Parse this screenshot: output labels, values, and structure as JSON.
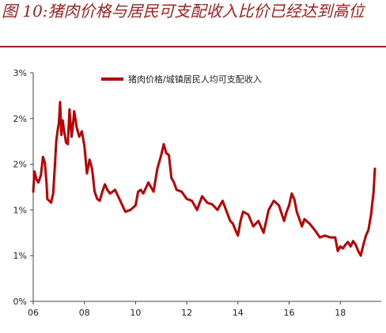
{
  "title": "图 10:猪肉价格与居民可支配收入比价已经达到高位",
  "chart_data": {
    "type": "line",
    "xlabel": "",
    "ylabel": "",
    "x_ticks": [
      "06",
      "08",
      "10",
      "12",
      "14",
      "16",
      "18"
    ],
    "y_ticks": [
      "0%",
      "1%",
      "1%",
      "2%",
      "2%",
      "3%"
    ],
    "y_tick_values": [
      0,
      0.5,
      1.0,
      1.5,
      2.0,
      2.5
    ],
    "xlim": [
      2006,
      2019.6
    ],
    "ylim": [
      0,
      2.5
    ],
    "legend": {
      "position": "top-right",
      "label": "猪肉价格/城镇居民人均可支配收入"
    },
    "series": [
      {
        "name": "猪肉价格/城镇居民人均可支配收入",
        "color": "#c00000",
        "x": [
          2006.0,
          2006.05,
          2006.12,
          2006.2,
          2006.3,
          2006.38,
          2006.45,
          2006.52,
          2006.55,
          2006.62,
          2006.7,
          2006.78,
          2006.85,
          2006.9,
          2006.95,
          2007.0,
          2007.05,
          2007.1,
          2007.15,
          2007.2,
          2007.28,
          2007.35,
          2007.42,
          2007.5,
          2007.55,
          2007.6,
          2007.7,
          2007.8,
          2007.9,
          2008.0,
          2008.1,
          2008.2,
          2008.3,
          2008.4,
          2008.5,
          2008.6,
          2008.7,
          2008.8,
          2008.9,
          2009.0,
          2009.2,
          2009.4,
          2009.6,
          2009.8,
          2010.0,
          2010.1,
          2010.2,
          2010.3,
          2010.5,
          2010.7,
          2010.85,
          2011.0,
          2011.1,
          2011.2,
          2011.3,
          2011.4,
          2011.5,
          2011.6,
          2011.8,
          2012.0,
          2012.2,
          2012.4,
          2012.6,
          2012.8,
          2013.0,
          2013.2,
          2013.4,
          2013.6,
          2013.7,
          2013.8,
          2013.9,
          2014.0,
          2014.1,
          2014.2,
          2014.4,
          2014.6,
          2014.8,
          2015.0,
          2015.2,
          2015.4,
          2015.6,
          2015.8,
          2015.9,
          2016.0,
          2016.1,
          2016.2,
          2016.3,
          2016.4,
          2016.5,
          2016.6,
          2016.8,
          2017.0,
          2017.2,
          2017.4,
          2017.6,
          2017.8,
          2017.9,
          2018.0,
          2018.1,
          2018.2,
          2018.3,
          2018.4,
          2018.5,
          2018.6,
          2018.7,
          2018.8,
          2018.9,
          2019.0,
          2019.1,
          2019.2,
          2019.3,
          2019.35
        ],
        "values": [
          1.2,
          1.42,
          1.34,
          1.3,
          1.38,
          1.58,
          1.52,
          1.3,
          1.12,
          1.1,
          1.08,
          1.18,
          1.5,
          1.75,
          1.86,
          1.95,
          2.18,
          1.82,
          1.98,
          1.88,
          1.74,
          1.72,
          2.1,
          1.8,
          1.92,
          2.08,
          1.9,
          1.8,
          1.86,
          1.7,
          1.4,
          1.55,
          1.45,
          1.2,
          1.12,
          1.1,
          1.2,
          1.28,
          1.22,
          1.18,
          1.22,
          1.1,
          0.98,
          1.0,
          1.05,
          1.2,
          1.22,
          1.18,
          1.3,
          1.2,
          1.45,
          1.6,
          1.72,
          1.62,
          1.6,
          1.35,
          1.3,
          1.22,
          1.2,
          1.12,
          1.1,
          1.0,
          1.15,
          1.08,
          1.06,
          1.0,
          1.1,
          0.95,
          0.88,
          0.85,
          0.78,
          0.72,
          0.88,
          0.98,
          0.95,
          0.82,
          0.88,
          0.75,
          1.0,
          1.1,
          1.05,
          0.88,
          0.98,
          1.05,
          1.18,
          1.12,
          0.98,
          0.9,
          0.82,
          0.9,
          0.85,
          0.78,
          0.7,
          0.72,
          0.7,
          0.7,
          0.55,
          0.6,
          0.58,
          0.62,
          0.65,
          0.6,
          0.66,
          0.62,
          0.55,
          0.5,
          0.62,
          0.72,
          0.78,
          0.95,
          1.2,
          1.45
        ]
      }
    ]
  }
}
